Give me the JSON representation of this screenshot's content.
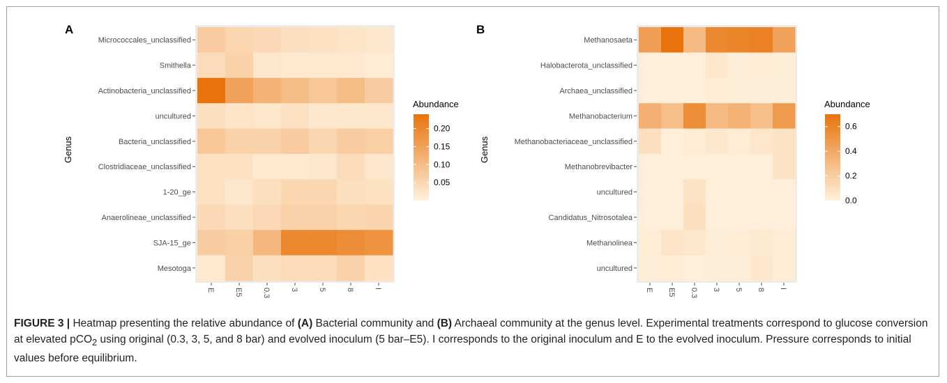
{
  "caption": {
    "label": "FIGURE 3",
    "separator": "|",
    "t1": " Heatmap presenting the relative abundance of ",
    "a": "(A)",
    "t2": " Bacterial community and ",
    "b": "(B)",
    "t3": " Archaeal community at the genus level. Experimental treatments correspond to glucose conversion at elevated pCO",
    "sub": "2",
    "t4": " using original (0.3, 3, 5, and 8 bar) and evolved inoculum (5 bar–E5). I corresponds to the original inoculum and E to the evolved inoculum. Pressure corresponds to initial values before equilibrium."
  },
  "colors": {
    "low": "#fff1dd",
    "high": "#e8730c",
    "panel_bg": "#ebebeb",
    "tick": "#4d4d4d"
  },
  "chart_data": [
    {
      "type": "heatmap",
      "panel": "A",
      "xlabel": "",
      "ylabel": "Genus",
      "x": [
        "E",
        "E5",
        "0.3",
        "3",
        "5",
        "8",
        "I"
      ],
      "y": [
        "Micrococcales_unclassified",
        "Smithella",
        "Actinobacteria_unclassified",
        "uncultured",
        "Bacteria_unclassified",
        "Clostridiaceae_unclassified",
        "1-20_ge",
        "Anaerolineae_unclassified",
        "SJA-15_ge",
        "Mesotoga"
      ],
      "values": [
        [
          0.07,
          0.05,
          0.045,
          0.035,
          0.03,
          0.025,
          0.02
        ],
        [
          0.04,
          0.06,
          0.02,
          0.015,
          0.015,
          0.015,
          0.01
        ],
        [
          0.24,
          0.15,
          0.12,
          0.1,
          0.08,
          0.1,
          0.07
        ],
        [
          0.035,
          0.025,
          0.02,
          0.03,
          0.02,
          0.02,
          0.02
        ],
        [
          0.08,
          0.06,
          0.06,
          0.07,
          0.05,
          0.07,
          0.065
        ],
        [
          0.03,
          0.03,
          0.015,
          0.015,
          0.02,
          0.04,
          0.02
        ],
        [
          0.03,
          0.02,
          0.035,
          0.05,
          0.05,
          0.035,
          0.03
        ],
        [
          0.045,
          0.035,
          0.045,
          0.06,
          0.06,
          0.05,
          0.055
        ],
        [
          0.07,
          0.065,
          0.11,
          0.2,
          0.2,
          0.19,
          0.18
        ],
        [
          0.015,
          0.06,
          0.035,
          0.04,
          0.04,
          0.06,
          0.03
        ]
      ],
      "legend": {
        "title": "Abundance",
        "ticks": [
          0.05,
          0.1,
          0.15,
          0.2
        ],
        "tick_labels": [
          "0.05",
          "0.10",
          "0.15",
          "0.20"
        ],
        "range": [
          0.0,
          0.24
        ],
        "placement": "right"
      }
    },
    {
      "type": "heatmap",
      "panel": "B",
      "xlabel": "",
      "ylabel": "Genus",
      "x": [
        "E",
        "E5",
        "0.3",
        "3",
        "5",
        "8",
        "I"
      ],
      "y": [
        "Methanosaeta",
        "Halobacterota_unclassified",
        "Archaea_unclassified",
        "Methanobacterium",
        "Methanobacteriaceae_unclassified",
        "Methanobrevibacter",
        "uncultured",
        "Candidatus_Nitrosotalea",
        "Methanolinea",
        "uncultured"
      ],
      "values": [
        [
          0.46,
          0.7,
          0.3,
          0.58,
          0.6,
          0.62,
          0.44
        ],
        [
          0.01,
          0.01,
          0.01,
          0.05,
          0.02,
          0.03,
          0.02
        ],
        [
          0.01,
          0.01,
          0.01,
          0.03,
          0.02,
          0.02,
          0.02
        ],
        [
          0.36,
          0.28,
          0.55,
          0.3,
          0.35,
          0.28,
          0.48
        ],
        [
          0.1,
          0.01,
          0.03,
          0.05,
          0.03,
          0.06,
          0.08
        ],
        [
          0.01,
          0.01,
          0.01,
          0.01,
          0.01,
          0.01,
          0.08
        ],
        [
          0.01,
          0.01,
          0.08,
          0.01,
          0.01,
          0.01,
          0.01
        ],
        [
          0.01,
          0.01,
          0.1,
          0.01,
          0.01,
          0.01,
          0.01
        ],
        [
          0.03,
          0.07,
          0.05,
          0.02,
          0.03,
          0.04,
          0.03
        ],
        [
          0.02,
          0.03,
          0.01,
          0.02,
          0.02,
          0.05,
          0.03
        ]
      ],
      "legend": {
        "title": "Abundance",
        "ticks": [
          0.0,
          0.2,
          0.4,
          0.6
        ],
        "tick_labels": [
          "0.0",
          "0.2",
          "0.4",
          "0.6"
        ],
        "range": [
          0.0,
          0.7
        ],
        "placement": "right"
      }
    }
  ]
}
